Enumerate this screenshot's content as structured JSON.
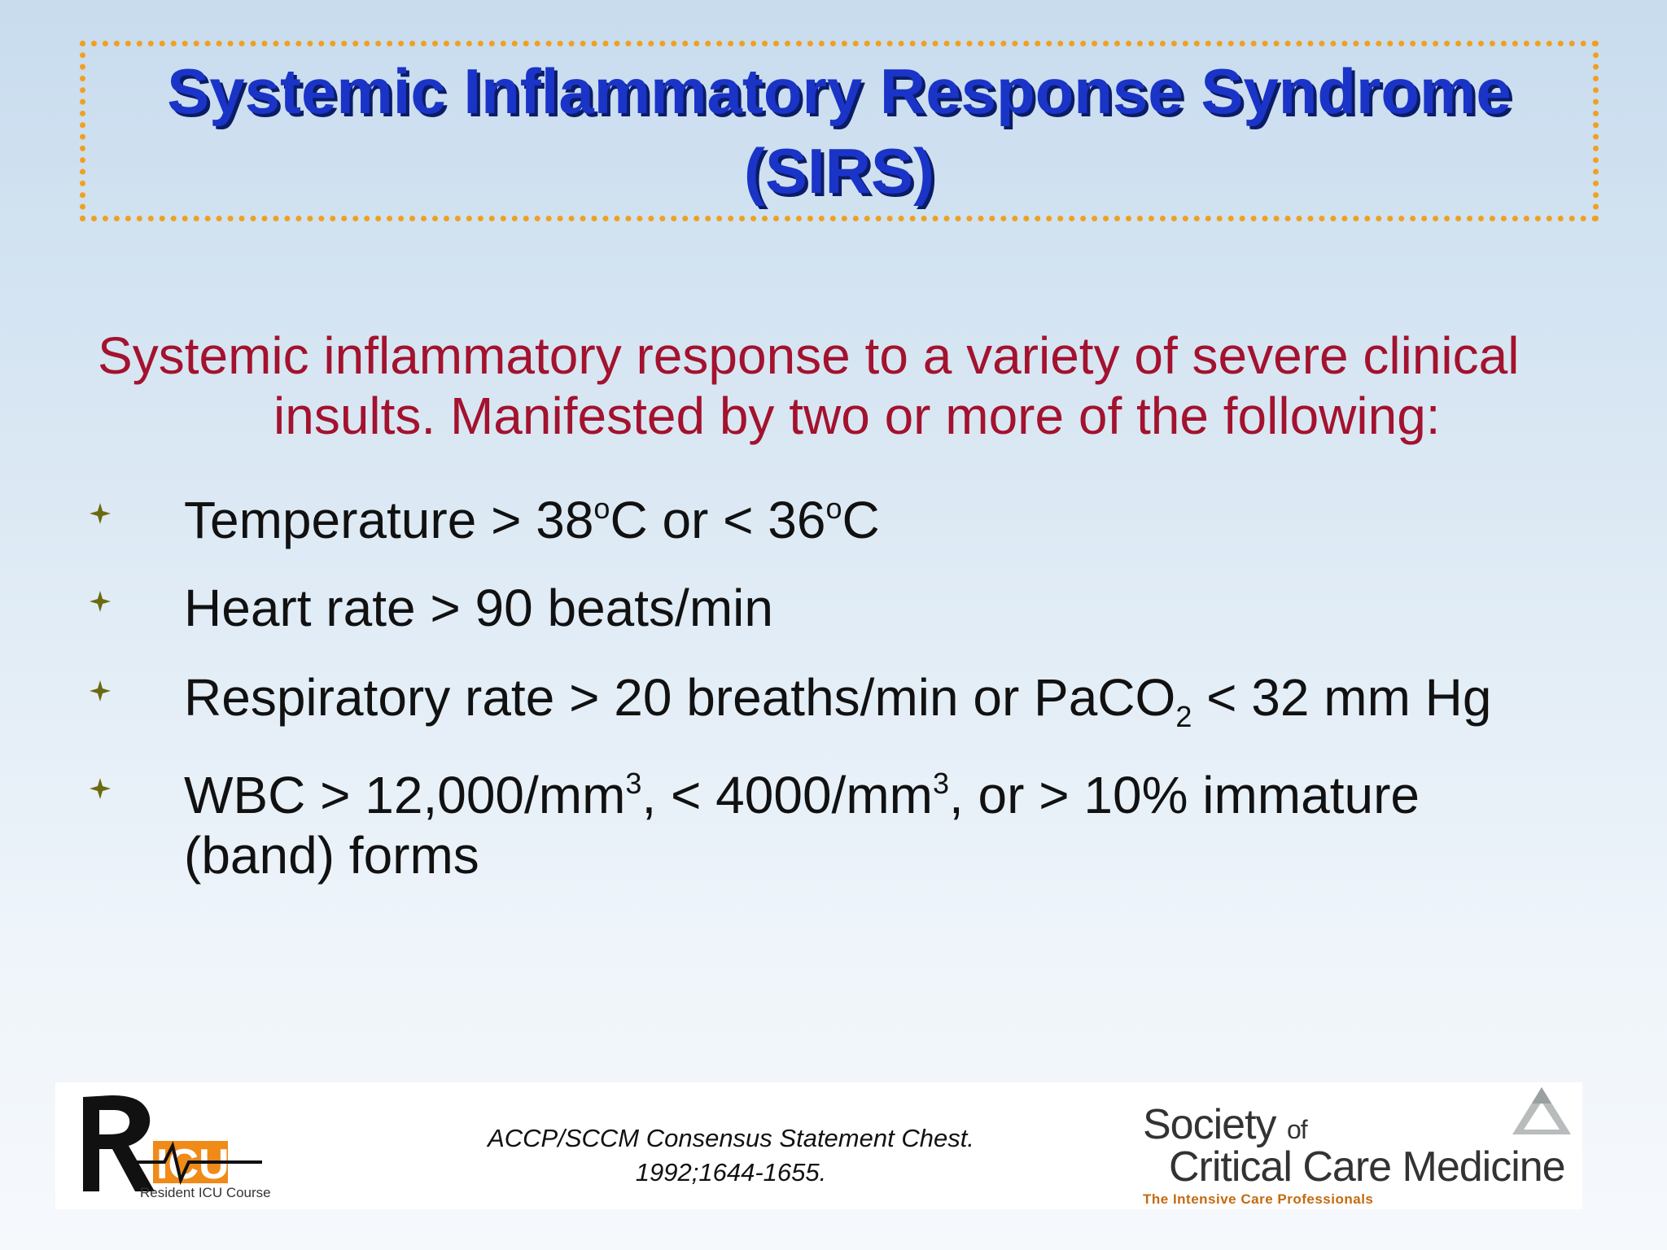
{
  "title": {
    "line1": "Systemic Inflammatory Response Syndrome",
    "line2": "(SIRS)"
  },
  "intro": {
    "line1": "Systemic inflammatory response to a variety of severe clinical",
    "line2": "insults.  Manifested by two or more of the following:"
  },
  "bullets": [
    {
      "parts": [
        "Temperature > 38",
        "o",
        "C or < 36",
        "o",
        "C"
      ]
    },
    {
      "text": "Heart rate > 90 beats/min"
    },
    {
      "parts": [
        "Respiratory rate > 20 breaths/min or PaCO",
        "2",
        " < 32 mm Hg"
      ]
    },
    {
      "parts": [
        "WBC > 12,000/mm",
        "3",
        ", < 4000/mm",
        "3",
        ", or > 10% immature"
      ],
      "line2": "(band) forms"
    }
  ],
  "footer": {
    "logo_left_text": "RICU",
    "logo_left_subtitle": "Resident ICU Course",
    "citation_line1": "ACCP/SCCM Consensus Statement Chest.",
    "citation_line2": "1992;1644-1655.",
    "sccm_society": "Society",
    "sccm_of": "of",
    "sccm_ccm": "Critical Care Medicine",
    "sccm_tagline": "The Intensive Care Professionals"
  },
  "colors": {
    "title": "#1a34c8",
    "title_shadow": "#0b1c66",
    "intro": "#a3122e",
    "border": "#f0a020",
    "bullet_mark": "#6b6a10",
    "ricu_orange": "#f08a18"
  },
  "icons": {
    "bullet": "four-point-star-icon",
    "ricu_logo": "ricu-logo-icon",
    "sccm_logo": "pyramid-logo-icon"
  }
}
